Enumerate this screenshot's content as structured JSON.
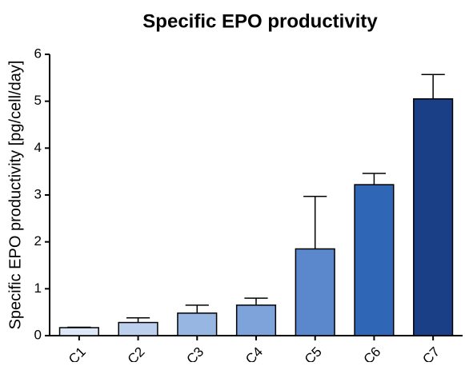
{
  "chart_data": {
    "type": "bar",
    "title": "Specific EPO productivity",
    "y_label": "Specific EPO productivity [pg/cell/day]",
    "categories": [
      "C1",
      "C2",
      "C3",
      "C4",
      "C5",
      "C6",
      "C7"
    ],
    "values": [
      0.17,
      0.28,
      0.48,
      0.65,
      1.85,
      3.22,
      5.05
    ],
    "errors": [
      0.01,
      0.1,
      0.17,
      0.15,
      1.12,
      0.24,
      0.52
    ],
    "colors": [
      "#dde8f7",
      "#bcd0ee",
      "#98b6e2",
      "#7ea2da",
      "#5b88cc",
      "#2f66b6",
      "#1a3f86"
    ],
    "ylim": [
      0,
      6
    ],
    "yticks": [
      0,
      1,
      2,
      3,
      4,
      5,
      6
    ]
  }
}
